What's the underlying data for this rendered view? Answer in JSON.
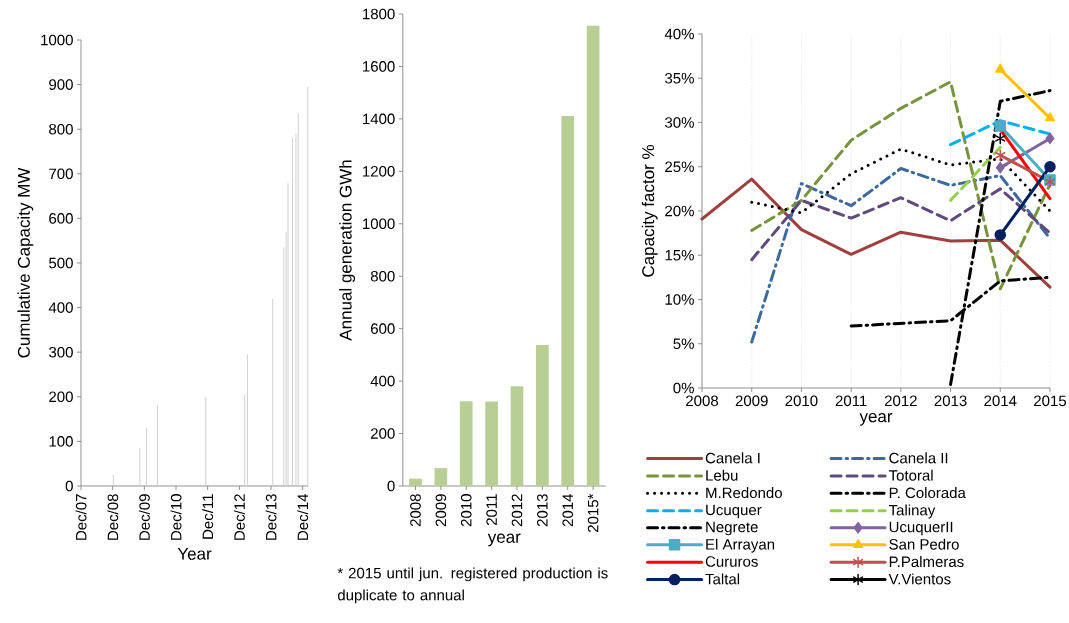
{
  "chart_data": [
    {
      "type": "bar",
      "xlabel": "Year",
      "ylabel": "Cumulative Capacity MW",
      "x": [
        "2008-12-07",
        "2009-10-10",
        "2009-12-25",
        "2010-05-01",
        "2011-11-10",
        "2013-02-01",
        "2013-03-04",
        "2013-12-21",
        "2014-04-28",
        "2014-05-24",
        "2014-06-15",
        "2014-08-06",
        "2014-09-15",
        "2014-10-12",
        "2015-01-28"
      ],
      "values": [
        25,
        85,
        130,
        180,
        200,
        205,
        295,
        420,
        535,
        570,
        680,
        780,
        790,
        835,
        895
      ],
      "color": "#d0d0d0",
      "xlim": [
        "2007-12-01",
        "2015-02-01"
      ],
      "xticks": [
        {
          "value": "2007-12-01",
          "label": "Dec/07"
        },
        {
          "value": "2008-12-01",
          "label": "Dec/08"
        },
        {
          "value": "2009-12-01",
          "label": "Dec/09"
        },
        {
          "value": "2010-12-01",
          "label": "Dec/10"
        },
        {
          "value": "2011-12-01",
          "label": "Dec/11"
        },
        {
          "value": "2012-12-01",
          "label": "Dec/12"
        },
        {
          "value": "2013-12-01",
          "label": "Dec/13"
        },
        {
          "value": "2014-12-01",
          "label": "Dec/14"
        }
      ],
      "ylim": [
        0,
        1000
      ],
      "yticks": [
        0,
        100,
        200,
        300,
        400,
        500,
        600,
        700,
        800,
        900,
        1000
      ]
    },
    {
      "type": "bar",
      "xlabel": "year",
      "ylabel": "Annual generation GWh",
      "categories": [
        "2008",
        "2009",
        "2010",
        "2011",
        "2012",
        "2013",
        "2014",
        "2015*"
      ],
      "values": [
        28,
        68,
        323,
        322,
        380,
        538,
        1411,
        1755
      ],
      "color": "#b7cf94",
      "ylim": [
        0,
        1800
      ],
      "yticks": [
        0,
        200,
        400,
        600,
        800,
        1000,
        1200,
        1400,
        1600,
        1800
      ],
      "annotations": [
        "* 2015 until jun. registered production is duplicate to annual"
      ]
    },
    {
      "type": "line",
      "xlabel": "year",
      "ylabel": "Capacity factor %",
      "x": [
        2008,
        2009,
        2010,
        2011,
        2012,
        2013,
        2014,
        2015
      ],
      "series": [
        {
          "name": "Canela I",
          "color": "#a0403c",
          "line_style": "solid",
          "values": [
            19.1,
            23.6,
            17.9,
            15.1,
            17.6,
            16.6,
            16.7,
            11.4
          ]
        },
        {
          "name": "Canela II",
          "color": "#3c6aa0",
          "line_style": "dashdot",
          "values": [
            null,
            5.2,
            23.1,
            20.6,
            24.8,
            22.9,
            24,
            16.9
          ]
        },
        {
          "name": "Lebu",
          "color": "#77933c",
          "line_style": "dashed",
          "values": [
            null,
            17.8,
            21.2,
            28,
            31.6,
            34.6,
            11.2,
            23
          ]
        },
        {
          "name": "Totoral",
          "color": "#604a7b",
          "line_style": "dashed",
          "values": [
            null,
            14.5,
            21.2,
            19.2,
            21.5,
            18.9,
            22.5,
            17.5
          ]
        },
        {
          "name": "M.Redondo",
          "color": "#000000",
          "line_style": "dotted",
          "values": [
            null,
            21,
            19.8,
            24.2,
            27,
            25.2,
            25.9,
            20
          ]
        },
        {
          "name": "P. Colorada",
          "color": "#000000",
          "line_style": "dashdot",
          "values": [
            null,
            null,
            null,
            7,
            7.3,
            7.6,
            12.1,
            12.5
          ]
        },
        {
          "name": "Ucuquer",
          "color": "#00b0f0",
          "line_style": "dashed",
          "values": [
            null,
            null,
            null,
            null,
            null,
            27.5,
            30.2,
            28.7
          ]
        },
        {
          "name": "Talinay",
          "color": "#92d050",
          "line_style": "dashed",
          "values": [
            null,
            null,
            null,
            null,
            null,
            21.2,
            27.2,
            null
          ]
        },
        {
          "name": "Negrete",
          "color": "#000000",
          "line_style": "dashdot",
          "values": [
            null,
            null,
            null,
            null,
            null,
            0.4,
            32.4,
            33.6
          ]
        },
        {
          "name": "UcuquerII",
          "color": "#8064a2",
          "line_style": "solid",
          "marker": "diamond",
          "values": [
            null,
            null,
            null,
            null,
            null,
            null,
            24.9,
            28.2
          ]
        },
        {
          "name": "El Arrayan",
          "color": "#4bacc6",
          "line_style": "solid",
          "marker": "square",
          "values": [
            null,
            null,
            null,
            null,
            null,
            null,
            29.6,
            23.5
          ]
        },
        {
          "name": "San Pedro",
          "color": "#ffc000",
          "line_style": "solid",
          "marker": "triangle",
          "values": [
            null,
            null,
            null,
            null,
            null,
            null,
            36,
            30.5
          ]
        },
        {
          "name": "Cururos",
          "color": "#ff0000",
          "line_style": "solid",
          "values": [
            null,
            null,
            null,
            null,
            null,
            null,
            29.2,
            21.4
          ]
        },
        {
          "name": "P.Palmeras",
          "color": "#c0504d",
          "line_style": "solid",
          "marker": "cross",
          "values": [
            null,
            null,
            null,
            null,
            null,
            null,
            26.3,
            23.3
          ]
        },
        {
          "name": "Taltal",
          "color": "#002060",
          "line_style": "solid",
          "marker": "circle",
          "values": [
            null,
            null,
            null,
            null,
            null,
            null,
            17.3,
            25
          ]
        },
        {
          "name": "V.Vientos",
          "color": "#000000",
          "line_style": "solid",
          "marker": "cross",
          "values": [
            null,
            null,
            null,
            null,
            null,
            null,
            28.2,
            null
          ]
        }
      ],
      "xlim": [
        2008,
        2015
      ],
      "xticks": [
        2008,
        2009,
        2010,
        2011,
        2012,
        2013,
        2014,
        2015
      ],
      "ylim": [
        0,
        40
      ],
      "yticks": [
        {
          "value": 0,
          "label": "0%"
        },
        {
          "value": 5,
          "label": "5%"
        },
        {
          "value": 10,
          "label": "10%"
        },
        {
          "value": 15,
          "label": "15%"
        },
        {
          "value": 20,
          "label": "20%"
        },
        {
          "value": 25,
          "label": "25%"
        },
        {
          "value": 30,
          "label": "30%"
        },
        {
          "value": 35,
          "label": "35%"
        },
        {
          "value": 40,
          "label": "40%"
        }
      ],
      "grid": "x",
      "legend": "bottom"
    }
  ]
}
